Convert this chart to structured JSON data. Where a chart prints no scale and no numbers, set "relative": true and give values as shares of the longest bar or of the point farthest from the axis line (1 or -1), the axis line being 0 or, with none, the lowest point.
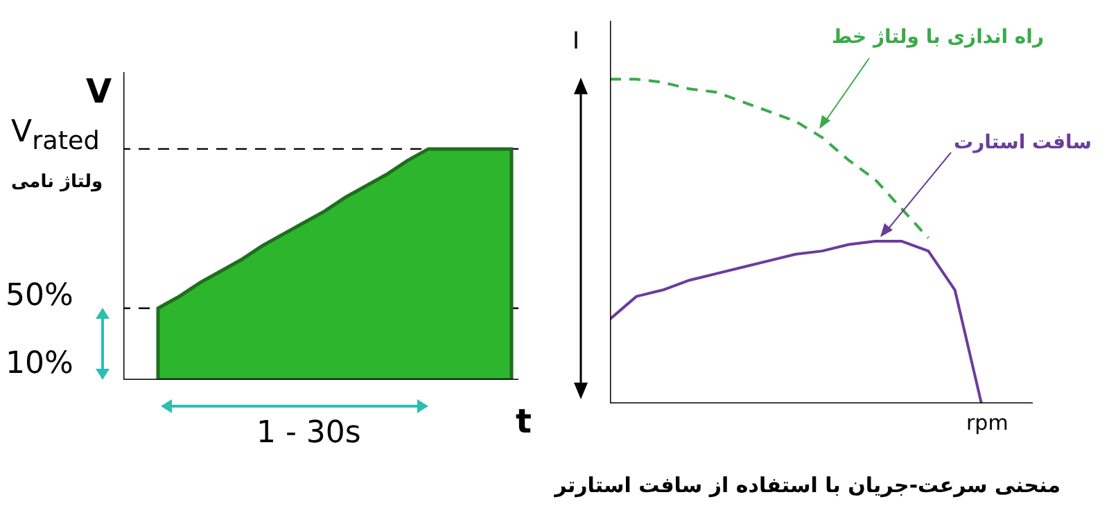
{
  "chart_data": [
    {
      "type": "area",
      "relative": true,
      "xlabel": "t",
      "ylabel": "V",
      "color": "#2db52d",
      "categories": [
        null,
        null,
        null,
        null,
        null,
        null,
        null,
        null,
        null,
        null,
        null,
        null,
        null,
        null,
        null,
        null,
        null,
        null
      ],
      "values": [
        0.31,
        0.36,
        0.42,
        0.47,
        0.52,
        0.58,
        0.63,
        0.68,
        0.73,
        0.79,
        0.84,
        0.89,
        0.95,
        1,
        1,
        1,
        1,
        1
      ],
      "ref_lines": [
        {
          "axis": "y",
          "value": 1,
          "label": "V$_{rated}$",
          "line_style": "dashed",
          "color": "#000000"
        },
        {
          "axis": "y",
          "value": 0.31,
          "line_style": "dashed",
          "color": "#000000"
        }
      ],
      "annotations": [
        "ولتاژ نامی",
        "50%",
        "10%",
        "1 - 30s"
      ]
    },
    {
      "type": "line",
      "relative": true,
      "xlabel": "rpm",
      "ylabel": "I",
      "categories": [
        null,
        null,
        null,
        null,
        null,
        null,
        null,
        null,
        null,
        null,
        null,
        null,
        null,
        null,
        null
      ],
      "series": [
        {
          "name": "راه اندازی با ولتاژ خط",
          "color": "#3aaa4a",
          "line_style": "dashed",
          "values": [
            1,
            1,
            0.99,
            0.97,
            0.96,
            0.93,
            0.9,
            0.87,
            0.82,
            0.75,
            0.69,
            0.6,
            0.51,
            null,
            null
          ]
        },
        {
          "name": "سافت استارت",
          "color": "#6a3d9a",
          "line_style": "solid",
          "values": [
            0.26,
            0.33,
            0.35,
            0.38,
            0.4,
            0.42,
            0.44,
            0.46,
            0.47,
            0.49,
            0.5,
            0.5,
            0.47,
            0.35,
            0
          ]
        }
      ],
      "annotations": [
        "منحنی سرعت-جریان با استفاده از سافت استارتر"
      ]
    }
  ]
}
